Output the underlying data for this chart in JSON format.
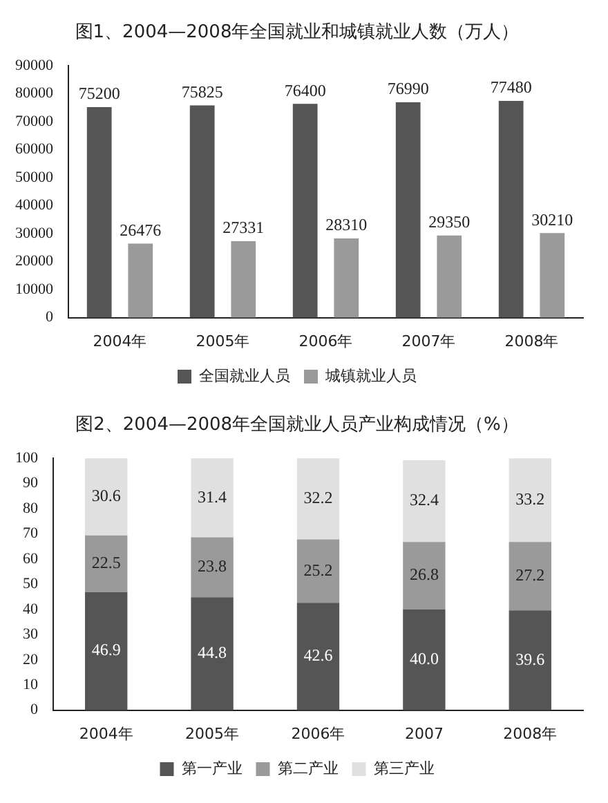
{
  "chart_data": [
    {
      "type": "bar",
      "title": "图1、2004—2008年全国就业和城镇就业人数（万人）",
      "categories": [
        "2004年",
        "2005年",
        "2006年",
        "2007年",
        "2008年"
      ],
      "series": [
        {
          "name": "全国就业人员",
          "color": "#555555",
          "values": [
            75200,
            75825,
            76400,
            76990,
            77480
          ]
        },
        {
          "name": "城镇就业人员",
          "color": "#9a9a9a",
          "values": [
            26476,
            27331,
            28310,
            29350,
            30210
          ]
        }
      ],
      "ylim": [
        0,
        90000
      ],
      "yticks": [
        0,
        10000,
        20000,
        30000,
        40000,
        50000,
        60000,
        70000,
        80000,
        90000
      ],
      "grid": false,
      "legend": "bottom",
      "data_labels": true
    },
    {
      "type": "bar",
      "title": "图2、2004—2008年全国就业人员产业构成情况（%）",
      "categories": [
        "2004年",
        "2005年",
        "2006年",
        "2007",
        "2008年"
      ],
      "stacked": true,
      "series": [
        {
          "name": "第一产业",
          "color": "#555555",
          "values": [
            46.9,
            44.8,
            42.6,
            40.0,
            39.6
          ],
          "value_labels": [
            "46.9",
            "44.8",
            "42.6",
            "40.0",
            "39.6"
          ]
        },
        {
          "name": "第二产业",
          "color": "#9a9a9a",
          "values": [
            22.5,
            23.8,
            25.2,
            26.8,
            27.2
          ],
          "value_labels": [
            "22.5",
            "23.8",
            "25.2",
            "26.8",
            "27.2"
          ]
        },
        {
          "name": "第三产业",
          "color": "#e0e0e0",
          "values": [
            30.6,
            31.4,
            32.2,
            32.4,
            33.2
          ],
          "value_labels": [
            "30.6",
            "31.4",
            "32.2",
            "32.4",
            "33.2"
          ]
        }
      ],
      "ylim": [
        0,
        100
      ],
      "yticks": [
        0,
        10,
        20,
        30,
        40,
        50,
        60,
        70,
        80,
        90,
        100
      ],
      "grid": false,
      "legend": "bottom"
    }
  ]
}
